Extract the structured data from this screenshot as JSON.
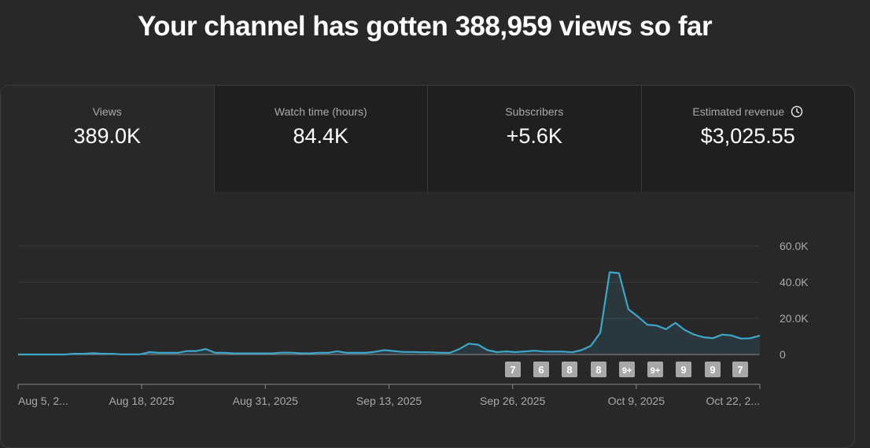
{
  "headline": "Your channel has gotten 388,959 views so far",
  "metrics": [
    {
      "label": "Views",
      "value": "389.0K",
      "active": true
    },
    {
      "label": "Watch time (hours)",
      "value": "84.4K"
    },
    {
      "label": "Subscribers",
      "value": "+5.6K"
    },
    {
      "label": "Estimated revenue",
      "value": "$3,025.55",
      "icon": "clock-icon"
    }
  ],
  "chart_data": {
    "type": "area",
    "y_ticks": [
      "60.0K",
      "40.0K",
      "20.0K",
      "0"
    ],
    "ylim": [
      0,
      60000
    ],
    "x_tick_labels": [
      "Aug 5, 2...",
      "Aug 18, 2025",
      "Aug 31, 2025",
      "Sep 13, 2025",
      "Sep 26, 2025",
      "Oct 9, 2025",
      "Oct 22, 2..."
    ],
    "series": [
      {
        "color": "#3ea6c8",
        "values": [
          0,
          0,
          0,
          0,
          0,
          0,
          400,
          400,
          700,
          400,
          400,
          100,
          100,
          100,
          1300,
          900,
          900,
          900,
          1900,
          1900,
          3000,
          900,
          900,
          600,
          600,
          600,
          600,
          600,
          1000,
          1000,
          700,
          600,
          900,
          900,
          1800,
          900,
          900,
          900,
          1500,
          2400,
          1900,
          1400,
          1400,
          1200,
          1200,
          900,
          900,
          3000,
          6000,
          5400,
          2400,
          1300,
          1700,
          1300,
          1700,
          2100,
          1600,
          1600,
          1600,
          1200,
          2400,
          4800,
          12000,
          45500,
          45000,
          25000,
          21000,
          16500,
          16000,
          14000,
          17500,
          13500,
          11000,
          9500,
          9000,
          11000,
          10500,
          8800,
          9000,
          10500
        ]
      }
    ],
    "annotations": [
      "7",
      "6",
      "8",
      "8",
      "9+",
      "9+",
      "9",
      "9",
      "7"
    ],
    "grid": true
  }
}
